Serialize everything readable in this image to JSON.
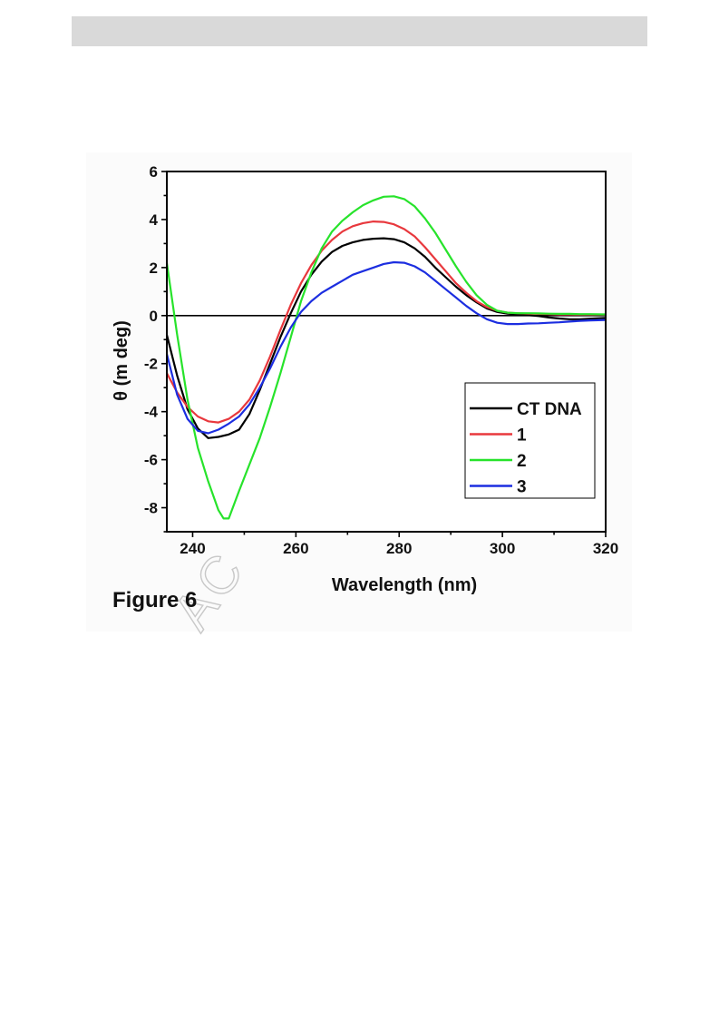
{
  "caption": "Figure 6",
  "watermark": "AC",
  "chart_data": {
    "type": "line",
    "title": "",
    "xlabel": "Wavelength (nm)",
    "ylabel": "θ (m deg)",
    "xlim": [
      235,
      320
    ],
    "ylim": [
      -9,
      6
    ],
    "xticks": [
      240,
      260,
      280,
      300,
      320
    ],
    "yticks": [
      6,
      4,
      2,
      0,
      -2,
      -4,
      -6,
      -8
    ],
    "zero_line": true,
    "grid": false,
    "legend_position": "bottom-right",
    "series": [
      {
        "name": "CT DNA",
        "color": "#000000",
        "x": [
          235,
          237,
          239,
          241,
          243,
          245,
          247,
          249,
          251,
          253,
          255,
          257,
          259,
          261,
          263,
          265,
          267,
          269,
          271,
          273,
          275,
          277,
          279,
          281,
          283,
          285,
          287,
          289,
          291,
          293,
          295,
          297,
          299,
          301,
          303,
          305,
          307,
          309,
          311,
          313,
          315,
          317,
          320
        ],
        "y": [
          -0.8,
          -2.5,
          -3.9,
          -4.7,
          -5.1,
          -5.05,
          -4.95,
          -4.75,
          -4.1,
          -3.1,
          -2.0,
          -0.9,
          0.1,
          1.0,
          1.7,
          2.25,
          2.65,
          2.9,
          3.05,
          3.15,
          3.2,
          3.22,
          3.18,
          3.05,
          2.8,
          2.45,
          2.0,
          1.6,
          1.2,
          0.85,
          0.55,
          0.3,
          0.15,
          0.08,
          0.05,
          0.02,
          -0.02,
          -0.08,
          -0.12,
          -0.15,
          -0.15,
          -0.13,
          -0.1
        ]
      },
      {
        "name": "1",
        "color": "#e8383d",
        "x": [
          235,
          237,
          239,
          241,
          243,
          245,
          247,
          249,
          251,
          253,
          255,
          257,
          259,
          261,
          263,
          265,
          267,
          269,
          271,
          273,
          275,
          277,
          279,
          281,
          283,
          285,
          287,
          289,
          291,
          293,
          295,
          297,
          299,
          301,
          303,
          305,
          307,
          309,
          311,
          313,
          315,
          317,
          320
        ],
        "y": [
          -2.4,
          -3.2,
          -3.8,
          -4.2,
          -4.4,
          -4.45,
          -4.3,
          -4.0,
          -3.5,
          -2.7,
          -1.7,
          -0.6,
          0.45,
          1.35,
          2.1,
          2.7,
          3.15,
          3.5,
          3.72,
          3.85,
          3.92,
          3.9,
          3.8,
          3.6,
          3.3,
          2.85,
          2.35,
          1.85,
          1.35,
          0.95,
          0.6,
          0.35,
          0.2,
          0.12,
          0.1,
          0.08,
          0.07,
          0.06,
          0.05,
          0.05,
          0.04,
          0.04,
          0.04
        ]
      },
      {
        "name": "2",
        "color": "#27e32b",
        "x": [
          235,
          237,
          239,
          241,
          243,
          245,
          246,
          247,
          249,
          251,
          253,
          255,
          257,
          259,
          261,
          263,
          265,
          267,
          269,
          271,
          273,
          275,
          277,
          279,
          281,
          283,
          285,
          287,
          289,
          291,
          293,
          295,
          297,
          299,
          301,
          303,
          305,
          307,
          309,
          311,
          313,
          315,
          317,
          320
        ],
        "y": [
          2.2,
          -0.8,
          -3.5,
          -5.5,
          -6.9,
          -8.1,
          -8.45,
          -8.45,
          -7.3,
          -6.2,
          -5.1,
          -3.8,
          -2.4,
          -0.9,
          0.6,
          1.8,
          2.8,
          3.5,
          3.95,
          4.3,
          4.6,
          4.8,
          4.95,
          4.97,
          4.85,
          4.55,
          4.05,
          3.45,
          2.75,
          2.05,
          1.4,
          0.85,
          0.45,
          0.2,
          0.12,
          0.1,
          0.1,
          0.09,
          0.08,
          0.07,
          0.07,
          0.06,
          0.06,
          0.05
        ]
      },
      {
        "name": "3",
        "color": "#1c2ee0",
        "x": [
          235,
          237,
          239,
          241,
          243,
          245,
          247,
          249,
          251,
          253,
          255,
          257,
          259,
          261,
          263,
          265,
          267,
          269,
          271,
          273,
          275,
          277,
          279,
          281,
          283,
          285,
          287,
          289,
          291,
          293,
          295,
          297,
          299,
          301,
          303,
          305,
          307,
          309,
          311,
          313,
          315,
          317,
          320
        ],
        "y": [
          -1.6,
          -3.3,
          -4.3,
          -4.8,
          -4.9,
          -4.75,
          -4.5,
          -4.2,
          -3.7,
          -3.0,
          -2.2,
          -1.3,
          -0.5,
          0.15,
          0.6,
          0.95,
          1.2,
          1.45,
          1.7,
          1.85,
          2.0,
          2.15,
          2.22,
          2.2,
          2.05,
          1.8,
          1.45,
          1.1,
          0.75,
          0.4,
          0.1,
          -0.15,
          -0.3,
          -0.35,
          -0.35,
          -0.33,
          -0.32,
          -0.3,
          -0.28,
          -0.25,
          -0.22,
          -0.2,
          -0.18
        ]
      }
    ]
  }
}
